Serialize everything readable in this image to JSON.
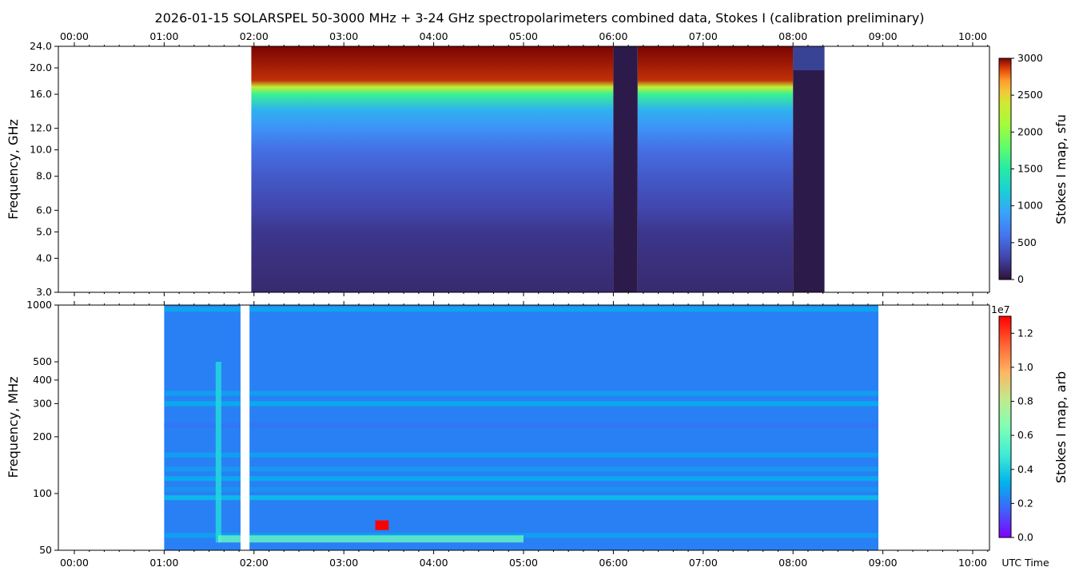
{
  "chart_data": [
    {
      "type": "heatmap",
      "title": "2026-01-15  SOLARSPEL  50-3000 MHz  +  3-24 GHz  spectropolarimeters combined data,  Stokes I  (calibration preliminary)",
      "xlabel": "",
      "ylabel": "Frequency, GHz",
      "x_ticks": [
        "00:00",
        "01:00",
        "02:00",
        "03:00",
        "04:00",
        "05:00",
        "06:00",
        "07:00",
        "08:00",
        "09:00",
        "10:00"
      ],
      "xlim_hours": [
        0,
        10.3
      ],
      "y_scale": "log",
      "ylim": [
        3.0,
        24.0
      ],
      "y_ticks": [
        "3.0",
        "4.0",
        "5.0",
        "6.0",
        "8.0",
        "10.0",
        "12.0",
        "16.0",
        "20.0",
        "24.0"
      ],
      "colorbar": {
        "label": "Stokes I map, sfu",
        "colormap": "turbo",
        "range": [
          0,
          3000
        ],
        "ticks": [
          "0",
          "500",
          "1000",
          "1500",
          "2000",
          "2500",
          "3000"
        ]
      },
      "data_segments_hours": [
        [
          1.97,
          6.0
        ],
        [
          6.27,
          8.0
        ]
      ],
      "gaps_hours": [
        [
          6.0,
          6.27
        ],
        [
          8.0,
          8.35
        ]
      ],
      "profile_ghz_sfu": [
        [
          3.0,
          140
        ],
        [
          4.0,
          180
        ],
        [
          5.0,
          220
        ],
        [
          6.0,
          300
        ],
        [
          8.0,
          430
        ],
        [
          10.0,
          560
        ],
        [
          12.0,
          800
        ],
        [
          14.0,
          1000
        ],
        [
          16.0,
          1600
        ],
        [
          17.0,
          2300
        ],
        [
          18.0,
          2900
        ],
        [
          24.0,
          3000
        ]
      ]
    },
    {
      "type": "heatmap",
      "xlabel": "UTC Time",
      "ylabel": "Frequency, MHz",
      "x_ticks": [
        "00:00",
        "01:00",
        "02:00",
        "03:00",
        "04:00",
        "05:00",
        "06:00",
        "07:00",
        "08:00",
        "09:00",
        "10:00"
      ],
      "xlim_hours": [
        0,
        10.3
      ],
      "y_scale": "log",
      "ylim": [
        50,
        1000
      ],
      "y_ticks": [
        "50",
        "100",
        "200",
        "300",
        "400",
        "500",
        "1000"
      ],
      "colorbar": {
        "label": "Stokes I map, arb",
        "colormap": "rainbow",
        "range": [
          0,
          13000000
        ],
        "offset_text": "1e7",
        "ticks": [
          "0.0",
          "0.2",
          "0.4",
          "0.6",
          "0.8",
          "1.0",
          "1.2"
        ]
      },
      "data_segment_hours": [
        1.0,
        8.95
      ],
      "gap_hours": [
        1.85,
        1.95
      ],
      "notable_features": [
        {
          "time_hours": 1.6,
          "freq_mhz": [
            55,
            500
          ],
          "desc": "bright vertical burst lane"
        },
        {
          "time_hours": [
            1.6,
            5.0
          ],
          "freq_mhz": 57,
          "desc": "bright band"
        },
        {
          "time_hours": [
            3.35,
            3.5
          ],
          "freq_mhz": 68,
          "desc": "red saturated spots"
        }
      ]
    }
  ]
}
